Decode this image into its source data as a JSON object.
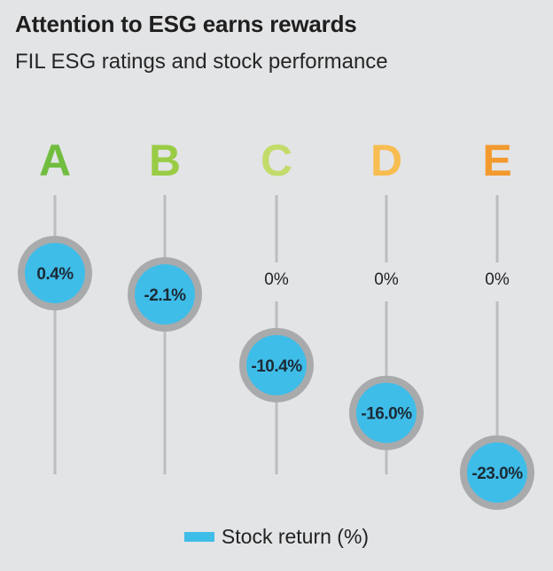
{
  "header": {
    "title": "Attention to ESG earns rewards",
    "subtitle": "FIL ESG ratings and stock performance"
  },
  "legend": {
    "label": "Stock return (%)",
    "color": "#3fbde9"
  },
  "zero_label": "0%",
  "colors": {
    "marker_fill": "#3fbde9",
    "marker_ring": "#a9aaac",
    "line": "#bcbdbf",
    "ratings": [
      "#71bd3f",
      "#99cc44",
      "#c2dc6a",
      "#f8bd50",
      "#f29a2e"
    ]
  },
  "chart_data": {
    "type": "scatter",
    "title": "Attention to ESG earns rewards",
    "subtitle": "FIL ESG ratings and stock performance",
    "categories": [
      "A",
      "B",
      "C",
      "D",
      "E"
    ],
    "series": [
      {
        "name": "Stock return (%)",
        "values": [
          0.4,
          -2.1,
          -10.4,
          -16.0,
          -23.0
        ],
        "labels": [
          "0.4%",
          "-2.1%",
          "-10.4%",
          "-16.0%",
          "-23.0%"
        ]
      }
    ],
    "ylim": [
      -23.0,
      0.4
    ],
    "grid": false,
    "legend_position": "bottom"
  }
}
